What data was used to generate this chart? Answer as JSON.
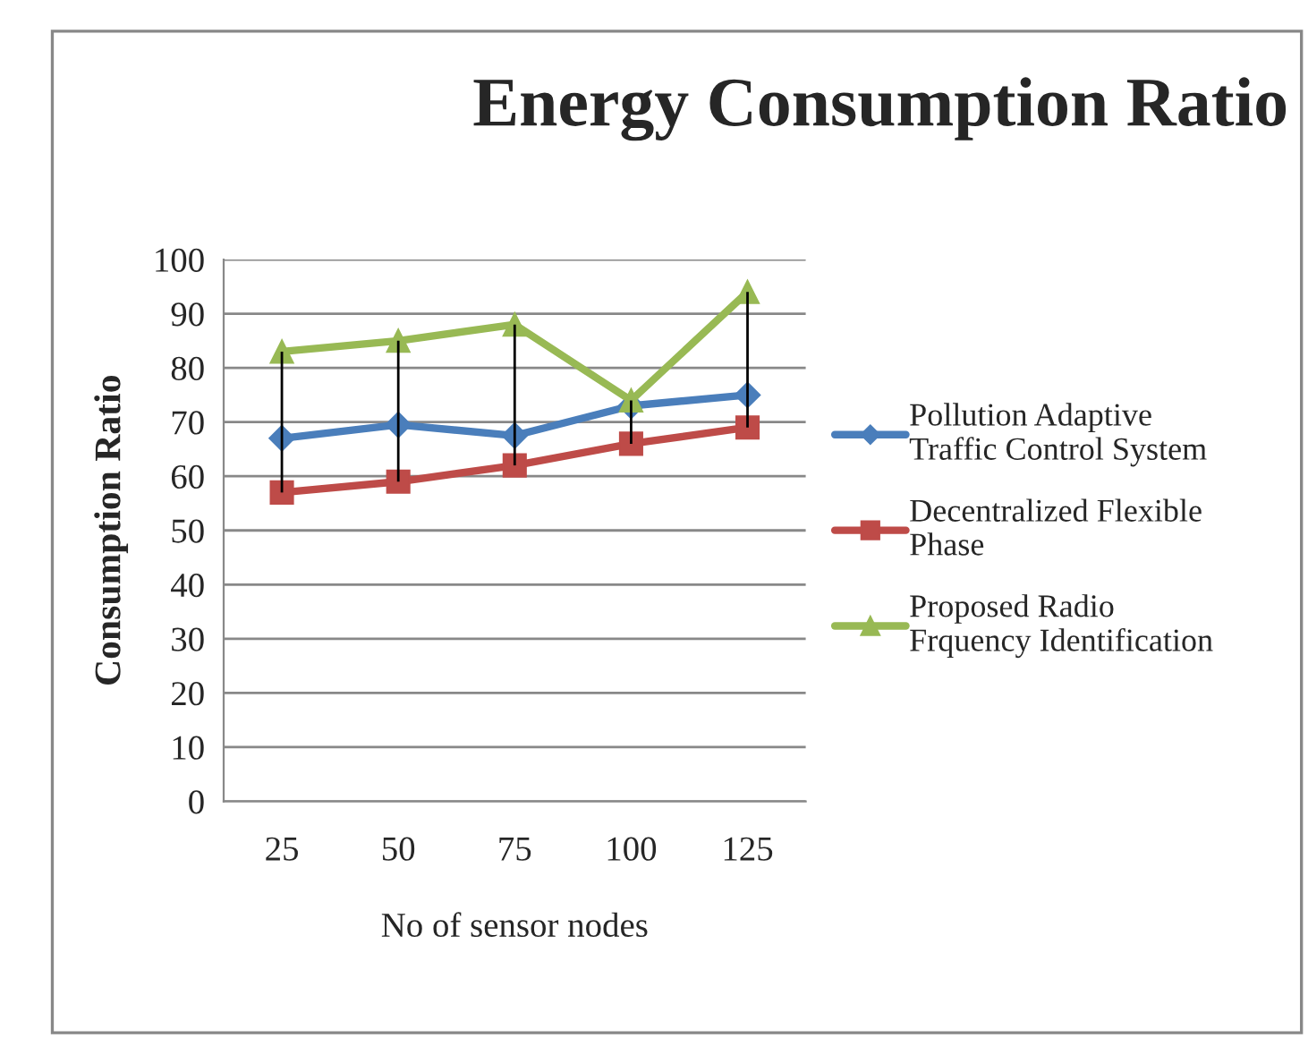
{
  "chart_data": {
    "type": "line",
    "title": "Energy Consumption Ratio",
    "xlabel": "No of sensor nodes",
    "ylabel": "Consumption Ratio",
    "categories": [
      "25",
      "50",
      "75",
      "100",
      "125"
    ],
    "series": [
      {
        "name": "Pollution Adaptive Traffic Control System",
        "color": "#4a7ebb",
        "marker": "diamond",
        "values": [
          67,
          69.5,
          67.5,
          73,
          75
        ]
      },
      {
        "name": "Decentralized Flexible Phase",
        "color": "#be4b48",
        "marker": "square",
        "values": [
          57,
          59,
          62,
          66,
          69
        ],
        "errors": [
          [
            57,
            83
          ],
          [
            59,
            85
          ],
          [
            62,
            88
          ],
          [
            66,
            74
          ],
          [
            69,
            94
          ]
        ]
      },
      {
        "name": "Proposed Radio Frquency Identification",
        "color": "#98b954",
        "marker": "triangle",
        "values": [
          83,
          85,
          88,
          74,
          94
        ]
      }
    ],
    "ylim": [
      0,
      100
    ],
    "yticks": [
      0,
      10,
      20,
      30,
      40,
      50,
      60,
      70,
      80,
      90,
      100
    ],
    "grid": "y",
    "legend": "right"
  }
}
